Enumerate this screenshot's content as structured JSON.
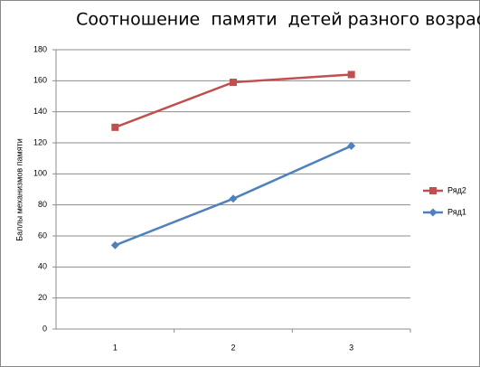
{
  "chart_data": {
    "type": "line",
    "title": "Соотношение  памяти  детей разного возраста",
    "y_label": "Баллы механизмов памяти",
    "categories": [
      "1",
      "2",
      "3"
    ],
    "series": [
      {
        "name": "Ряд2",
        "color": "#c0504d",
        "marker": "square",
        "values": [
          130,
          159,
          164
        ]
      },
      {
        "name": "Ряд1",
        "color": "#4f81bd",
        "marker": "diamond",
        "values": [
          54,
          84,
          118
        ]
      }
    ],
    "ylim": [
      0,
      180
    ],
    "yticks": [
      0,
      20,
      40,
      60,
      80,
      100,
      120,
      140,
      160,
      180
    ],
    "grid": true,
    "legend": "right"
  }
}
